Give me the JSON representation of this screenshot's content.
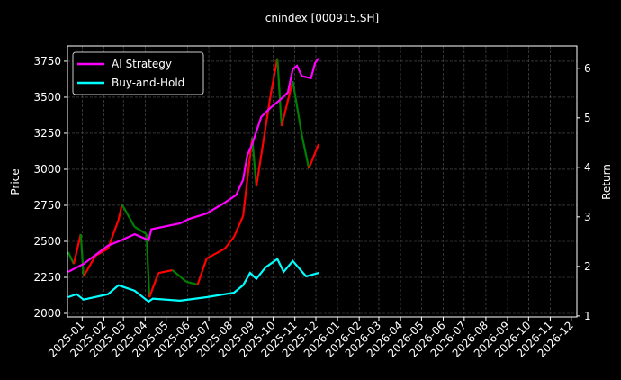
{
  "chart_data": {
    "type": "line",
    "title": "cnindex [000915.SH]",
    "ylabel": "Price",
    "y2label": "Return",
    "xlim": [
      "2024-12-11",
      "2026-12-09"
    ],
    "ylim": [
      1975,
      3856
    ],
    "y2lim": [
      0.98,
      6.45
    ],
    "yticks": [
      2000,
      2250,
      2500,
      2750,
      3000,
      3250,
      3500,
      3750
    ],
    "y2ticks": [
      1,
      2,
      3,
      4,
      5,
      6
    ],
    "xticks": [
      "2025-01",
      "2025-02",
      "2025-03",
      "2025-04",
      "2025-05",
      "2025-06",
      "2025-07",
      "2025-08",
      "2025-09",
      "2025-10",
      "2025-11",
      "2025-12",
      "2026-01",
      "2026-02",
      "2026-03",
      "2026-04",
      "2026-05",
      "2026-06",
      "2026-07",
      "2026-08",
      "2026-09",
      "2026-10",
      "2026-11",
      "2026-12"
    ],
    "grid": true,
    "legend_position": "top-left",
    "price": {
      "up_color": "#ff0000",
      "down_color": "#008000",
      "points": [
        [
          "2024-12-12",
          2425
        ],
        [
          "2024-12-20",
          2343
        ],
        [
          "2024-12-30",
          2550
        ],
        [
          "2025-01-03",
          2256
        ],
        [
          "2025-01-20",
          2400
        ],
        [
          "2025-02-07",
          2450
        ],
        [
          "2025-02-22",
          2650
        ],
        [
          "2025-02-27",
          2756
        ],
        [
          "2025-03-17",
          2600
        ],
        [
          "2025-04-03",
          2550
        ],
        [
          "2025-04-07",
          2112
        ],
        [
          "2025-04-20",
          2280
        ],
        [
          "2025-05-10",
          2300
        ],
        [
          "2025-05-30",
          2219
        ],
        [
          "2025-06-15",
          2200
        ],
        [
          "2025-06-28",
          2381
        ],
        [
          "2025-07-24",
          2450
        ],
        [
          "2025-08-06",
          2531
        ],
        [
          "2025-08-19",
          2675
        ],
        [
          "2025-08-29",
          3094
        ],
        [
          "2025-09-01",
          3219
        ],
        [
          "2025-09-07",
          2881
        ],
        [
          "2025-09-27",
          3506
        ],
        [
          "2025-10-07",
          3770
        ],
        [
          "2025-10-13",
          3300
        ],
        [
          "2025-10-29",
          3612
        ],
        [
          "2025-11-11",
          3237
        ],
        [
          "2025-11-21",
          3006
        ],
        [
          "2025-12-05",
          3175
        ]
      ]
    },
    "series": [
      {
        "name": "AI Strategy",
        "color": "#ff00ff",
        "axis": "right",
        "points": [
          [
            "2024-12-12",
            1.89
          ],
          [
            "2025-01-03",
            2.05
          ],
          [
            "2025-02-07",
            2.42
          ],
          [
            "2025-02-26",
            2.53
          ],
          [
            "2025-03-17",
            2.65
          ],
          [
            "2025-04-06",
            2.53
          ],
          [
            "2025-04-10",
            2.75
          ],
          [
            "2025-05-21",
            2.87
          ],
          [
            "2025-06-03",
            2.96
          ],
          [
            "2025-06-28",
            3.07
          ],
          [
            "2025-07-24",
            3.29
          ],
          [
            "2025-08-09",
            3.44
          ],
          [
            "2025-08-19",
            3.75
          ],
          [
            "2025-08-25",
            4.24
          ],
          [
            "2025-09-01",
            4.47
          ],
          [
            "2025-09-14",
            5.02
          ],
          [
            "2025-09-27",
            5.2
          ],
          [
            "2025-10-10",
            5.35
          ],
          [
            "2025-10-22",
            5.51
          ],
          [
            "2025-10-29",
            5.98
          ],
          [
            "2025-11-04",
            6.05
          ],
          [
            "2025-11-11",
            5.84
          ],
          [
            "2025-11-24",
            5.8
          ],
          [
            "2025-11-30",
            6.11
          ],
          [
            "2025-12-05",
            6.2
          ]
        ]
      },
      {
        "name": "Buy-and-Hold",
        "color": "#00ffff",
        "axis": "right",
        "points": [
          [
            "2024-12-12",
            1.38
          ],
          [
            "2024-12-24",
            1.44
          ],
          [
            "2025-01-03",
            1.33
          ],
          [
            "2025-02-07",
            1.44
          ],
          [
            "2025-02-22",
            1.62
          ],
          [
            "2025-03-17",
            1.51
          ],
          [
            "2025-04-06",
            1.29
          ],
          [
            "2025-04-12",
            1.35
          ],
          [
            "2025-05-21",
            1.31
          ],
          [
            "2025-06-28",
            1.38
          ],
          [
            "2025-08-06",
            1.47
          ],
          [
            "2025-08-19",
            1.62
          ],
          [
            "2025-08-29",
            1.87
          ],
          [
            "2025-09-07",
            1.75
          ],
          [
            "2025-09-20",
            1.98
          ],
          [
            "2025-10-07",
            2.15
          ],
          [
            "2025-10-16",
            1.89
          ],
          [
            "2025-10-29",
            2.11
          ],
          [
            "2025-11-17",
            1.8
          ],
          [
            "2025-12-05",
            1.87
          ]
        ]
      }
    ]
  }
}
